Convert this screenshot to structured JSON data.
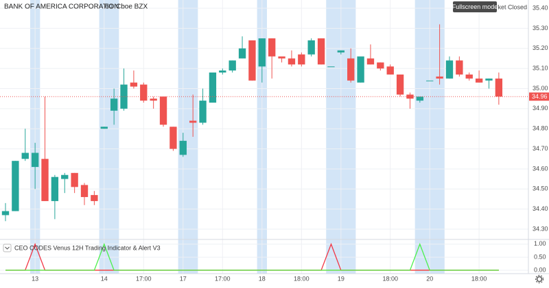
{
  "chart_data": [
    {
      "type": "candlestick",
      "title": "BANK OF AMERICA CORPORATION",
      "interval": "60",
      "exchange": "Cboe BZX",
      "status": "Market Closed",
      "tooltip": "Fullscreen mode",
      "up_color": "#26a69a",
      "down_color": "#ef5350",
      "highlight_color": "#d3e5f7",
      "open": [
        34.37,
        34.39,
        34.65,
        34.61,
        34.65,
        34.44,
        34.55,
        34.58,
        34.52,
        34.47,
        34.8,
        34.89,
        34.9,
        35.03,
        35.02,
        34.95,
        34.96,
        34.81,
        34.67,
        34.84,
        34.83,
        34.93,
        35.08,
        35.09,
        35.15,
        35.24,
        35.11,
        35.25,
        35.16,
        35.15,
        35.17,
        35.17,
        35.25,
        35.11,
        35.18,
        35.15,
        35.03,
        35.15,
        35.13,
        35.11,
        35.07,
        34.97,
        34.94,
        35.04,
        35.06,
        35.05,
        35.14,
        35.07,
        35.05,
        35.04,
        35.05
      ],
      "high": [
        34.43,
        34.64,
        34.8,
        34.73,
        34.96,
        34.57,
        34.58,
        34.58,
        34.53,
        34.49,
        34.81,
        35.0,
        35.1,
        35.09,
        35.03,
        34.96,
        34.96,
        34.81,
        34.78,
        34.97,
        35.0,
        35.08,
        35.1,
        35.14,
        35.26,
        35.24,
        35.25,
        35.25,
        35.16,
        35.19,
        35.18,
        35.25,
        35.25,
        35.11,
        35.19,
        35.2,
        35.16,
        35.22,
        35.13,
        35.12,
        35.07,
        34.98,
        34.96,
        35.04,
        35.32,
        35.16,
        35.16,
        35.08,
        35.09,
        35.05,
        35.08
      ],
      "low": [
        34.34,
        34.39,
        34.64,
        34.5,
        34.44,
        34.35,
        34.48,
        34.48,
        34.42,
        34.42,
        34.8,
        34.82,
        34.89,
        35.0,
        34.93,
        34.9,
        34.81,
        34.69,
        34.66,
        34.76,
        34.82,
        34.93,
        35.07,
        35.08,
        35.15,
        35.04,
        35.03,
        35.05,
        35.13,
        35.11,
        35.11,
        35.16,
        35.12,
        35.11,
        35.17,
        35.03,
        35.03,
        35.12,
        35.09,
        35.07,
        34.96,
        34.9,
        34.93,
        35.04,
        35.02,
        35.05,
        35.06,
        35.04,
        35.03,
        35.0,
        34.92
      ],
      "close": [
        34.39,
        34.64,
        34.68,
        34.68,
        34.44,
        34.56,
        34.57,
        34.51,
        34.46,
        34.44,
        34.81,
        34.95,
        35.02,
        35.01,
        34.94,
        34.94,
        34.82,
        34.7,
        34.74,
        34.83,
        34.94,
        35.08,
        35.09,
        35.14,
        35.2,
        35.04,
        35.25,
        35.16,
        35.15,
        35.12,
        35.12,
        35.24,
        35.12,
        35.11,
        35.19,
        35.04,
        35.16,
        35.12,
        35.1,
        35.07,
        34.97,
        34.95,
        34.96,
        35.04,
        35.05,
        35.14,
        35.07,
        35.05,
        35.03,
        35.05,
        34.96
      ],
      "highlight_ranges": [
        [
          3,
          3
        ],
        [
          10,
          11
        ],
        [
          18,
          19
        ],
        [
          26,
          26
        ],
        [
          33,
          35
        ],
        [
          42,
          44
        ]
      ],
      "last_price": 34.96,
      "last_price_color": "#ef5350",
      "xlim": [
        -0.556,
        53
      ],
      "xticks": [
        {
          "value": 3,
          "label": "13"
        },
        {
          "value": 10,
          "label": "14"
        },
        {
          "value": 14,
          "label": "17:00"
        },
        {
          "value": 18,
          "label": "17"
        },
        {
          "value": 22,
          "label": "17:00"
        },
        {
          "value": 26,
          "label": "18"
        },
        {
          "value": 30,
          "label": "18:00"
        },
        {
          "value": 34,
          "label": "19"
        },
        {
          "value": 39,
          "label": "18:00"
        },
        {
          "value": 43,
          "label": "20"
        },
        {
          "value": 48,
          "label": "18:00"
        }
      ],
      "ylim": [
        34.249,
        35.441
      ],
      "yticks": [
        {
          "value": 35.4,
          "label": "35.40"
        },
        {
          "value": 35.3,
          "label": "35.30"
        },
        {
          "value": 35.2,
          "label": "35.20"
        },
        {
          "value": 35.1,
          "label": "35.10"
        },
        {
          "value": 35.0,
          "label": "35.00"
        },
        {
          "value": 34.9,
          "label": "34.90"
        },
        {
          "value": 34.8,
          "label": "34.80"
        },
        {
          "value": 34.7,
          "label": "34.70"
        },
        {
          "value": 34.6,
          "label": "34.60"
        },
        {
          "value": 34.5,
          "label": "34.50"
        },
        {
          "value": 34.4,
          "label": "34.40"
        },
        {
          "value": 34.3,
          "label": "34.30"
        }
      ],
      "grid": true
    },
    {
      "type": "line",
      "title": "CEO CODES Venus 12H Trading Indicator & Alert V3",
      "series": [
        {
          "color": "#f57c00",
          "values": [
            0,
            0,
            0,
            0,
            0,
            0,
            0,
            0,
            0,
            0,
            0,
            0,
            0,
            0,
            0,
            0,
            0,
            0,
            0,
            0,
            0,
            0,
            0,
            0,
            0,
            0,
            0,
            0,
            0,
            0,
            0,
            0,
            0,
            0,
            0,
            0,
            0,
            0,
            0,
            0,
            0,
            0,
            0,
            0,
            0,
            0,
            0,
            0,
            0,
            0,
            0
          ]
        },
        {
          "color": "#f23645",
          "values": [
            0,
            0,
            0,
            1,
            0,
            0,
            0,
            0,
            0,
            0,
            0,
            0,
            0,
            0,
            0,
            0,
            0,
            0,
            0,
            0,
            0,
            0,
            0,
            0,
            0,
            0,
            0,
            0,
            0,
            0,
            0,
            0,
            0,
            1,
            0,
            0,
            0,
            0,
            0,
            0,
            0,
            0,
            0,
            0,
            0,
            0,
            0,
            0,
            0,
            0,
            0
          ]
        },
        {
          "color": "#4cf04c",
          "values": [
            0,
            0,
            0,
            0,
            0,
            0,
            0,
            0,
            0,
            0,
            1,
            0,
            0,
            0,
            0,
            0,
            0,
            0,
            0,
            0,
            0,
            0,
            0,
            0,
            0,
            0,
            0,
            0,
            0,
            0,
            0,
            0,
            0,
            0,
            0,
            0,
            0,
            0,
            0,
            0,
            0,
            0,
            1,
            0,
            0,
            0,
            0,
            0,
            0,
            0,
            0
          ]
        }
      ],
      "ylim": [
        -0.13,
        1.18
      ],
      "yticks": [
        {
          "value": 1,
          "label": "1.00"
        },
        {
          "value": 0.5,
          "label": "0.50"
        },
        {
          "value": 0,
          "label": "0.00"
        }
      ]
    }
  ]
}
